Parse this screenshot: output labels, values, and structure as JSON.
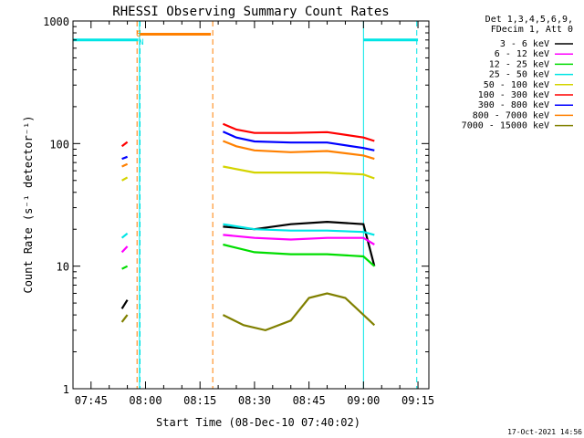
{
  "chart_data": {
    "type": "line",
    "title": "RHESSI Observing Summary Count Rates",
    "xlabel": "Start Time (08-Dec-10 07:40:02)",
    "ylabel": "Count Rate (s⁻¹ detector⁻¹)",
    "xlim": [
      "07:40:02",
      "09:18:00"
    ],
    "x_ticks": [
      "07:45",
      "08:00",
      "08:15",
      "08:30",
      "08:45",
      "09:00",
      "09:15"
    ],
    "y_scale": "log",
    "ylim": [
      1,
      1000
    ],
    "y_ticks": [
      "1",
      "10",
      "100",
      "1000"
    ],
    "grid": false,
    "legend_position": "right",
    "legend_header": [
      "Det 1,3,4,5,6,9,",
      "FDecim 1, Att 0"
    ],
    "series": [
      {
        "name": "3 - 6 keV",
        "color": "#000000",
        "segments": [
          {
            "x": [
              "07:53:30",
              "07:55:00"
            ],
            "y": [
              4.5,
              5.3
            ]
          },
          {
            "x": [
              "08:21:20",
              "08:30:00",
              "08:40:00",
              "08:50:00",
              "09:00:00",
              "09:03:00"
            ],
            "y": [
              21,
              20,
              22,
              23,
              22,
              10
            ]
          }
        ]
      },
      {
        "name": "6 - 12 keV",
        "color": "#ff00ff",
        "segments": [
          {
            "x": [
              "07:53:30",
              "07:55:00"
            ],
            "y": [
              13,
              14.5
            ]
          },
          {
            "x": [
              "08:21:20",
              "08:30:00",
              "08:40:00",
              "08:50:00",
              "09:00:00",
              "09:03:00"
            ],
            "y": [
              18,
              17,
              16.5,
              17,
              17,
              15
            ]
          }
        ]
      },
      {
        "name": "12 - 25 keV",
        "color": "#00dd00",
        "segments": [
          {
            "x": [
              "07:53:30",
              "07:55:00"
            ],
            "y": [
              9.5,
              10
            ]
          },
          {
            "x": [
              "08:21:20",
              "08:30:00",
              "08:40:00",
              "08:50:00",
              "09:00:00",
              "09:03:00"
            ],
            "y": [
              15,
              13,
              12.5,
              12.5,
              12,
              10
            ]
          }
        ]
      },
      {
        "name": "25 - 50 keV",
        "color": "#00e5e5",
        "segments": [
          {
            "x": [
              "07:53:30",
              "07:55:00"
            ],
            "y": [
              17,
              18.5
            ]
          },
          {
            "x": [
              "08:21:20",
              "08:30:00",
              "08:40:00",
              "08:50:00",
              "09:00:00",
              "09:03:00"
            ],
            "y": [
              22,
              20,
              19.5,
              19.5,
              19,
              18
            ]
          }
        ]
      },
      {
        "name": "50 - 100 keV",
        "color": "#d4d400",
        "segments": [
          {
            "x": [
              "07:53:30",
              "07:55:00"
            ],
            "y": [
              50,
              53
            ]
          },
          {
            "x": [
              "08:21:20",
              "08:30:00",
              "08:40:00",
              "08:50:00",
              "09:00:00",
              "09:03:00"
            ],
            "y": [
              65,
              58,
              58,
              58,
              56,
              52
            ]
          }
        ]
      },
      {
        "name": "100 - 300 keV",
        "color": "#ff0000",
        "segments": [
          {
            "x": [
              "07:53:30",
              "07:55:00"
            ],
            "y": [
              95,
              103
            ]
          },
          {
            "x": [
              "08:21:20",
              "08:25:00",
              "08:30:00",
              "08:40:00",
              "08:50:00",
              "09:00:00",
              "09:03:00"
            ],
            "y": [
              145,
              130,
              122,
              122,
              124,
              112,
              105
            ]
          }
        ]
      },
      {
        "name": "300 - 800 keV",
        "color": "#0000ff",
        "segments": [
          {
            "x": [
              "07:53:30",
              "07:55:00"
            ],
            "y": [
              75,
              78
            ]
          },
          {
            "x": [
              "08:21:20",
              "08:25:00",
              "08:30:00",
              "08:40:00",
              "08:50:00",
              "09:00:00",
              "09:03:00"
            ],
            "y": [
              125,
              112,
              104,
              102,
              102,
              92,
              88
            ]
          }
        ]
      },
      {
        "name": "800 - 7000 keV",
        "color": "#ff8000",
        "segments": [
          {
            "x": [
              "07:53:30",
              "07:55:00"
            ],
            "y": [
              65,
              68
            ]
          },
          {
            "x": [
              "07:58:30",
              "08:18:00"
            ],
            "y": [
              780,
              780
            ]
          },
          {
            "x": [
              "08:21:20",
              "08:25:00",
              "08:30:00",
              "08:40:00",
              "08:50:00",
              "09:00:00",
              "09:03:00"
            ],
            "y": [
              105,
              95,
              88,
              85,
              87,
              80,
              75
            ]
          }
        ]
      },
      {
        "name": "7000 - 15000 keV",
        "color": "#808000",
        "segments": [
          {
            "x": [
              "07:53:30",
              "07:55:00"
            ],
            "y": [
              3.5,
              4
            ]
          },
          {
            "x": [
              "08:21:20",
              "08:27:00",
              "08:33:00",
              "08:40:00",
              "08:45:00",
              "08:50:00",
              "08:55:00",
              "09:00:00",
              "09:03:00"
            ],
            "y": [
              4,
              3.3,
              3.0,
              3.6,
              5.5,
              6,
              5.5,
              4,
              3.3
            ]
          }
        ]
      }
    ],
    "annotations": [
      {
        "text": "S",
        "x": "07:58:10",
        "color": "#ff8000"
      },
      {
        "text": "N",
        "x": "07:58:50",
        "color": "#00e5e5"
      }
    ],
    "markers": [
      {
        "kind": "orange-dashed",
        "x": "07:57:40",
        "color": "#ff8000"
      },
      {
        "kind": "orange-dashed",
        "x": "08:18:30",
        "color": "#ff8000"
      },
      {
        "kind": "cyan-solid",
        "x": "07:58:20",
        "color": "#00e5e5"
      },
      {
        "kind": "cyan-solid",
        "x": "09:00:00",
        "color": "#00e5e5"
      },
      {
        "kind": "cyan-dashed",
        "x": "07:58:30",
        "color": "#00e5e5"
      },
      {
        "kind": "cyan-dashed",
        "x": "09:14:40",
        "color": "#00e5e5"
      }
    ],
    "night_bars": [
      {
        "x": [
          "07:40:02",
          "07:58:00"
        ],
        "y": 700,
        "color": "#00e5e5"
      },
      {
        "x": [
          "09:00:00",
          "09:15:00"
        ],
        "y": 700,
        "color": "#00e5e5"
      }
    ]
  },
  "footer": {
    "timestamp": "17-Oct-2021 14:56"
  }
}
